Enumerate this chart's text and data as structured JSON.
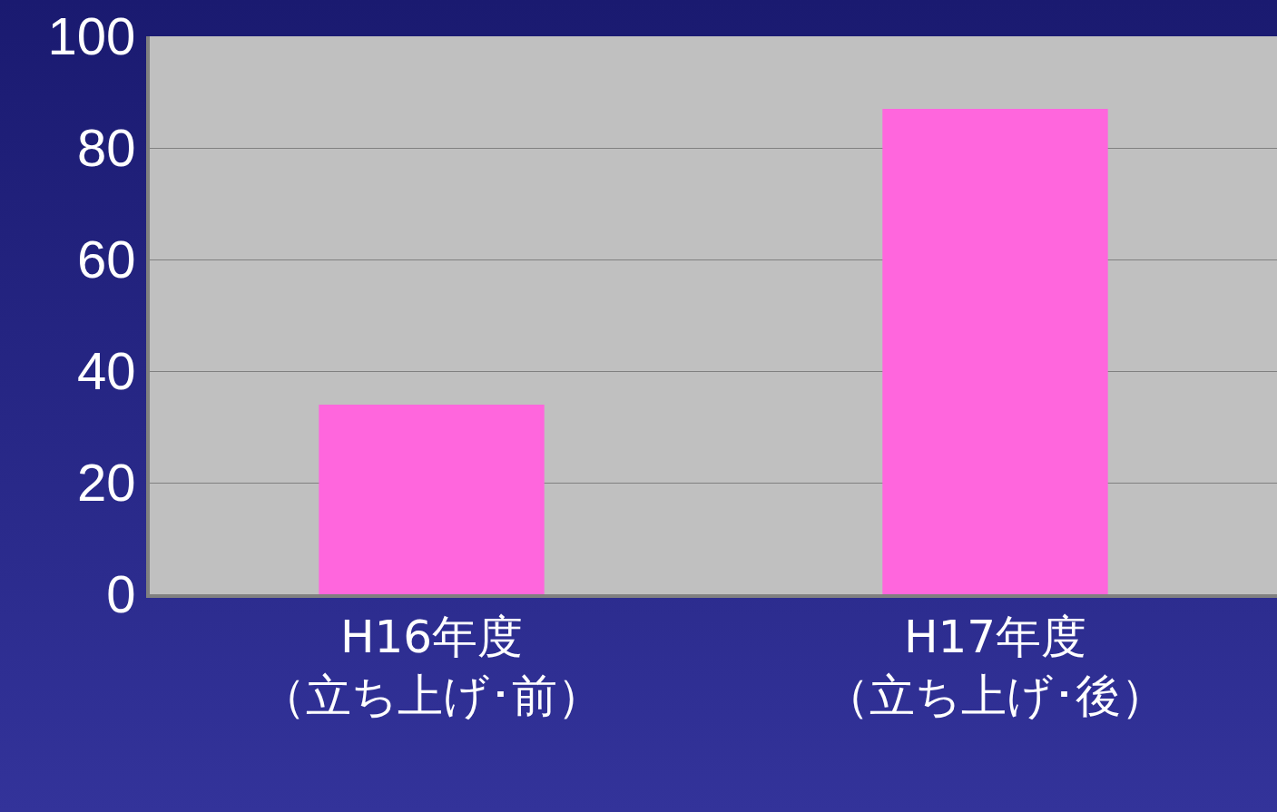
{
  "chart_data": {
    "type": "bar",
    "categories": [
      "H16年度（立ち上げ･前）",
      "H17年度（立ち上げ･後）"
    ],
    "values": [
      34,
      87
    ],
    "color": "#ff66dd",
    "ylim": [
      0,
      100
    ],
    "yticks": [
      0,
      20,
      40,
      60,
      80,
      100
    ],
    "grid": "y"
  }
}
